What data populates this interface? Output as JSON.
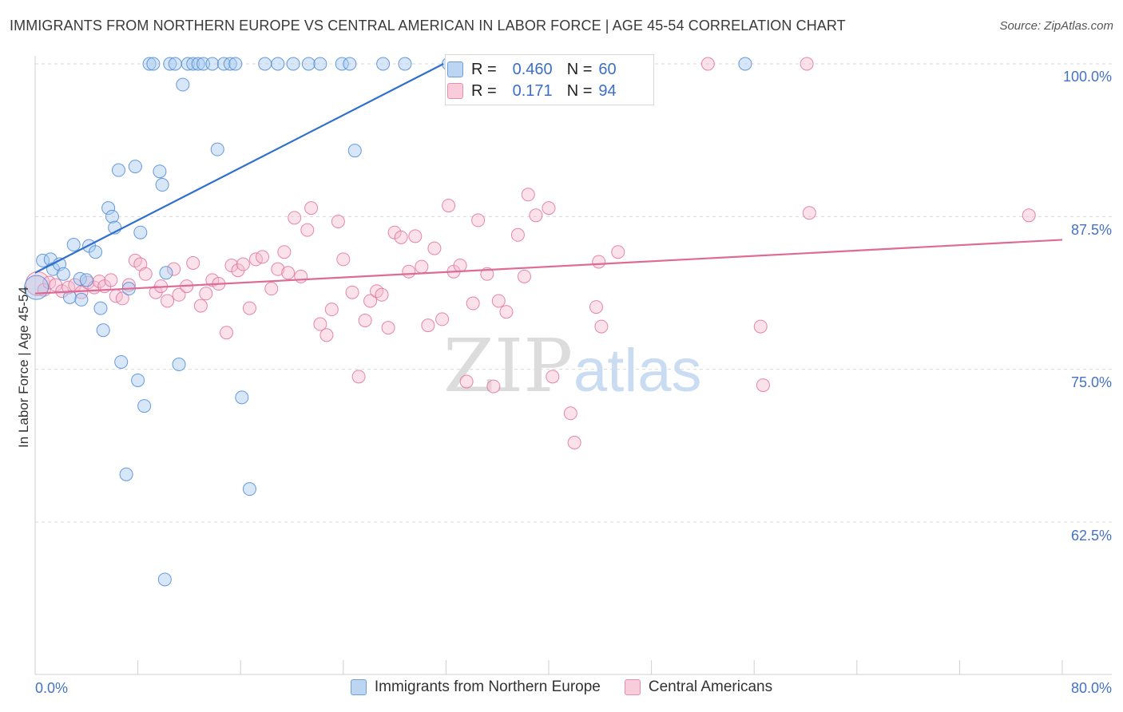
{
  "title": "IMMIGRANTS FROM NORTHERN EUROPE VS CENTRAL AMERICAN IN LABOR FORCE | AGE 45-54 CORRELATION CHART",
  "source": "Source: ZipAtlas.com",
  "watermark": {
    "zip": "ZIP",
    "atlas": "atlas"
  },
  "colors": {
    "blue": "#4f8ad6",
    "blue_fill": "#a9c9f0",
    "pink": "#e2739a",
    "pink_fill": "#f5bcd0",
    "tick_text": "#4472c4"
  },
  "stats": {
    "blue": {
      "r_label": "R =",
      "r": "0.460",
      "n_label": "N =",
      "n": "60"
    },
    "pink": {
      "r_label": "R =",
      "r": "0.171",
      "n_label": "N =",
      "n": "94"
    }
  },
  "chart_data": {
    "type": "scatter",
    "title": "IMMIGRANTS FROM NORTHERN EUROPE VS CENTRAL AMERICAN IN LABOR FORCE | AGE 45-54 CORRELATION CHART",
    "xlabel": "",
    "ylabel": "In Labor Force | Age 45-54",
    "xlim": [
      0,
      80
    ],
    "ylim": [
      52.5,
      101.5
    ],
    "x_tick_labels": [
      "0.0%",
      "80.0%"
    ],
    "y_ticks": [
      62.5,
      75.0,
      87.5,
      100.0
    ],
    "y_tick_labels": [
      "62.5%",
      "75.0%",
      "87.5%",
      "100.0%"
    ],
    "grid": "horizontal dashed",
    "legend_placement": "bottom",
    "series": [
      {
        "name": "Immigrants from Northern Europe",
        "color": "#4f8ad6",
        "trend": {
          "x": [
            0,
            31.8
          ],
          "y": [
            82.9,
            100.0
          ]
        },
        "points": [
          [
            0.1,
            81.7
          ],
          [
            0.6,
            83.9
          ],
          [
            1.2,
            84.0
          ],
          [
            1.4,
            83.2
          ],
          [
            1.9,
            83.6
          ],
          [
            2.2,
            82.8
          ],
          [
            2.7,
            80.9
          ],
          [
            3.0,
            85.2
          ],
          [
            3.6,
            80.7
          ],
          [
            3.5,
            82.4
          ],
          [
            4.0,
            82.3
          ],
          [
            4.2,
            85.1
          ],
          [
            4.7,
            84.6
          ],
          [
            5.1,
            80.0
          ],
          [
            5.3,
            78.2
          ],
          [
            5.7,
            88.2
          ],
          [
            6.0,
            87.5
          ],
          [
            6.2,
            86.6
          ],
          [
            6.5,
            91.3
          ],
          [
            6.7,
            75.6
          ],
          [
            7.1,
            66.4
          ],
          [
            7.3,
            81.6
          ],
          [
            7.8,
            91.6
          ],
          [
            8.0,
            74.1
          ],
          [
            8.2,
            86.2
          ],
          [
            8.5,
            72.0
          ],
          [
            8.9,
            100.0
          ],
          [
            9.2,
            100.0
          ],
          [
            9.7,
            91.2
          ],
          [
            9.9,
            90.1
          ],
          [
            10.1,
            57.8
          ],
          [
            10.2,
            82.9
          ],
          [
            10.5,
            100.0
          ],
          [
            10.9,
            100.0
          ],
          [
            11.2,
            75.4
          ],
          [
            11.5,
            98.3
          ],
          [
            11.9,
            100.0
          ],
          [
            12.3,
            100.0
          ],
          [
            12.7,
            100.0
          ],
          [
            13.1,
            100.0
          ],
          [
            13.8,
            100.0
          ],
          [
            14.2,
            93.0
          ],
          [
            14.7,
            100.0
          ],
          [
            15.2,
            100.0
          ],
          [
            16.1,
            72.7
          ],
          [
            16.7,
            65.2
          ],
          [
            15.6,
            100.0
          ],
          [
            17.9,
            100.0
          ],
          [
            18.9,
            100.0
          ],
          [
            20.1,
            100.0
          ],
          [
            21.3,
            100.0
          ],
          [
            22.2,
            100.0
          ],
          [
            23.9,
            100.0
          ],
          [
            24.5,
            100.0
          ],
          [
            24.9,
            92.9
          ],
          [
            27.1,
            100.0
          ],
          [
            28.8,
            100.0
          ],
          [
            32.2,
            100.0
          ],
          [
            34.3,
            100.0
          ],
          [
            55.3,
            100.0
          ]
        ]
      },
      {
        "name": "Central Americans",
        "color": "#e2739a",
        "trend": {
          "x": [
            0,
            80
          ],
          "y": [
            81.2,
            85.6
          ]
        },
        "points": [
          [
            0.2,
            82.0
          ],
          [
            0.7,
            81.5
          ],
          [
            1.1,
            82.1
          ],
          [
            1.6,
            81.9
          ],
          [
            2.1,
            81.4
          ],
          [
            2.6,
            81.7
          ],
          [
            3.1,
            81.9
          ],
          [
            3.6,
            81.3
          ],
          [
            4.1,
            82.1
          ],
          [
            4.6,
            81.7
          ],
          [
            5.0,
            82.2
          ],
          [
            5.4,
            81.8
          ],
          [
            5.9,
            82.3
          ],
          [
            6.3,
            81.0
          ],
          [
            6.8,
            80.8
          ],
          [
            7.3,
            81.9
          ],
          [
            7.8,
            83.9
          ],
          [
            8.2,
            83.6
          ],
          [
            8.6,
            82.8
          ],
          [
            9.4,
            81.3
          ],
          [
            9.8,
            81.8
          ],
          [
            10.3,
            80.6
          ],
          [
            10.8,
            83.2
          ],
          [
            11.2,
            81.1
          ],
          [
            11.8,
            81.8
          ],
          [
            12.3,
            83.7
          ],
          [
            12.9,
            80.2
          ],
          [
            13.3,
            81.2
          ],
          [
            13.8,
            82.3
          ],
          [
            14.3,
            82.0
          ],
          [
            14.9,
            78.0
          ],
          [
            15.3,
            83.5
          ],
          [
            15.8,
            83.1
          ],
          [
            16.2,
            83.6
          ],
          [
            16.7,
            80.0
          ],
          [
            17.2,
            84.0
          ],
          [
            17.7,
            84.2
          ],
          [
            18.4,
            81.6
          ],
          [
            18.9,
            83.2
          ],
          [
            19.4,
            84.6
          ],
          [
            19.7,
            82.9
          ],
          [
            20.2,
            87.4
          ],
          [
            20.7,
            82.6
          ],
          [
            21.2,
            86.4
          ],
          [
            21.5,
            88.2
          ],
          [
            22.2,
            78.7
          ],
          [
            22.7,
            77.8
          ],
          [
            23.1,
            79.9
          ],
          [
            23.6,
            87.1
          ],
          [
            24.0,
            84.0
          ],
          [
            24.7,
            81.3
          ],
          [
            25.2,
            74.4
          ],
          [
            25.7,
            79.0
          ],
          [
            26.1,
            80.6
          ],
          [
            26.6,
            81.4
          ],
          [
            27.0,
            81.1
          ],
          [
            27.5,
            78.4
          ],
          [
            28.0,
            86.2
          ],
          [
            28.5,
            85.8
          ],
          [
            29.1,
            83.0
          ],
          [
            29.6,
            85.9
          ],
          [
            30.1,
            83.4
          ],
          [
            30.6,
            78.6
          ],
          [
            31.1,
            84.9
          ],
          [
            31.7,
            79.1
          ],
          [
            32.2,
            88.4
          ],
          [
            32.6,
            83.0
          ],
          [
            33.1,
            83.5
          ],
          [
            33.6,
            74.0
          ],
          [
            34.1,
            80.4
          ],
          [
            34.5,
            87.2
          ],
          [
            35.2,
            82.8
          ],
          [
            35.7,
            73.6
          ],
          [
            36.1,
            80.6
          ],
          [
            36.7,
            79.7
          ],
          [
            37.6,
            86.0
          ],
          [
            38.1,
            82.6
          ],
          [
            38.4,
            89.3
          ],
          [
            39.0,
            87.6
          ],
          [
            40.0,
            88.2
          ],
          [
            40.3,
            74.4
          ],
          [
            41.7,
            71.4
          ],
          [
            42.0,
            100.0
          ],
          [
            43.7,
            80.1
          ],
          [
            44.1,
            78.5
          ],
          [
            43.9,
            83.8
          ],
          [
            42.0,
            69.0
          ],
          [
            45.4,
            84.6
          ],
          [
            52.4,
            100.0
          ],
          [
            56.5,
            78.5
          ],
          [
            56.7,
            73.7
          ],
          [
            60.1,
            100.0
          ],
          [
            60.3,
            87.8
          ],
          [
            77.4,
            87.6
          ]
        ]
      }
    ]
  }
}
